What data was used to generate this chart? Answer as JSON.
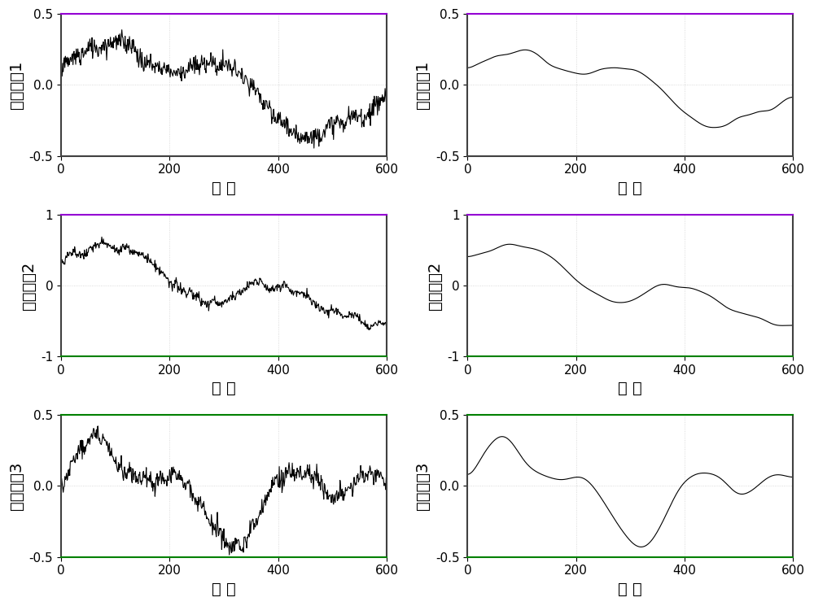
{
  "figsize": [
    10.0,
    7.45
  ],
  "dpi": 100,
  "nrows": 3,
  "ncols": 2,
  "n_points": 601,
  "subplots": [
    {
      "row": 0,
      "col": 0,
      "ylabel": "基线误差1",
      "xlabel": "历 元",
      "ylim": [
        -0.5,
        0.5
      ],
      "xlim": [
        0,
        600
      ],
      "yticks": [
        -0.5,
        0,
        0.5
      ],
      "border_top": "#9400d3",
      "border_bottom": "#404040",
      "border_left": "#404040",
      "border_right": "#404040"
    },
    {
      "row": 0,
      "col": 1,
      "ylabel": "多径误差1",
      "xlabel": "历 元",
      "ylim": [
        -0.5,
        0.5
      ],
      "xlim": [
        0,
        600
      ],
      "yticks": [
        -0.5,
        0,
        0.5
      ],
      "border_top": "#9400d3",
      "border_bottom": "#404040",
      "border_left": "#404040",
      "border_right": "#404040"
    },
    {
      "row": 1,
      "col": 0,
      "ylabel": "基线误差2",
      "xlabel": "历 元",
      "ylim": [
        -1.0,
        1.0
      ],
      "xlim": [
        0,
        600
      ],
      "yticks": [
        -1,
        0,
        1
      ],
      "border_top": "#9400d3",
      "border_bottom": "#008000",
      "border_left": "#404040",
      "border_right": "#404040"
    },
    {
      "row": 1,
      "col": 1,
      "ylabel": "多径误差2",
      "xlabel": "历 元",
      "ylim": [
        -1.0,
        1.0
      ],
      "xlim": [
        0,
        600
      ],
      "yticks": [
        -1,
        0,
        1
      ],
      "border_top": "#9400d3",
      "border_bottom": "#008000",
      "border_left": "#404040",
      "border_right": "#404040"
    },
    {
      "row": 2,
      "col": 0,
      "ylabel": "基线误差3",
      "xlabel": "历 元",
      "ylim": [
        -0.5,
        0.5
      ],
      "xlim": [
        0,
        600
      ],
      "yticks": [
        -0.5,
        0,
        0.5
      ],
      "border_top": "#008000",
      "border_bottom": "#008000",
      "border_left": "#404040",
      "border_right": "#404040"
    },
    {
      "row": 2,
      "col": 1,
      "ylabel": "多径误差3",
      "xlabel": "历 元",
      "ylim": [
        -0.5,
        0.5
      ],
      "xlim": [
        0,
        600
      ],
      "yticks": [
        -0.5,
        0,
        0.5
      ],
      "border_top": "#008000",
      "border_bottom": "#008000",
      "border_left": "#404040",
      "border_right": "#404040"
    }
  ],
  "line_color": "black",
  "line_width": 0.8,
  "bg_color": "white",
  "grid_color": "#d0d0d0",
  "grid_style": ":",
  "ylabel_fontsize": 14,
  "xlabel_fontsize": 14,
  "tick_fontsize": 11
}
